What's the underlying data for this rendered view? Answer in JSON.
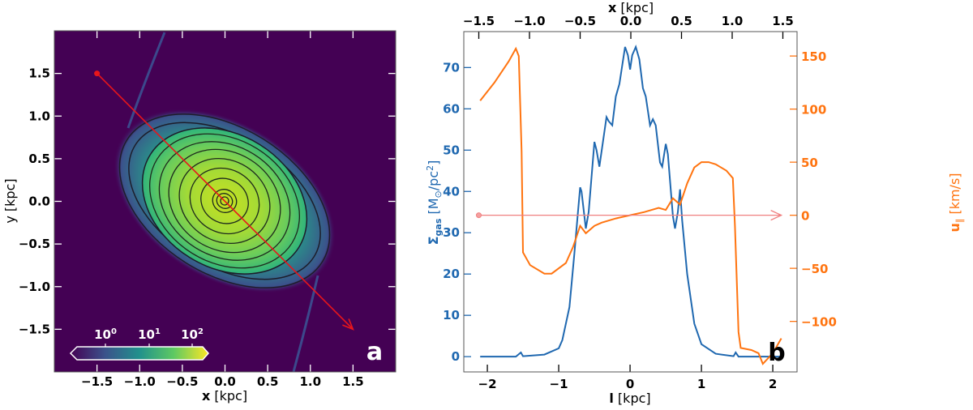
{
  "chart_data": [
    {
      "type": "heatmap",
      "panel_label": "a",
      "xlabel": "x [kpc]",
      "ylabel": "y [kpc]",
      "xlim": [
        -2.0,
        2.0
      ],
      "ylim": [
        -2.0,
        2.0
      ],
      "xticks": [
        -1.5,
        -1.0,
        -0.5,
        0.0,
        0.5,
        1.0,
        1.5
      ],
      "yticks": [
        -1.5,
        -1.0,
        -0.5,
        0.0,
        0.5,
        1.0,
        1.5
      ],
      "xtick_labels": [
        "−1.5",
        "−1.0",
        "−0.5",
        "0.0",
        "0.5",
        "1.0",
        "1.5"
      ],
      "ytick_labels": [
        "−1.5",
        "−1.0",
        "−0.5",
        "0.0",
        "0.5",
        "1.0",
        "1.5"
      ],
      "colormap": "viridis",
      "colorbar": {
        "scale": "log",
        "tick_labels": [
          {
            "base": "10",
            "exp": "0"
          },
          {
            "base": "10",
            "exp": "1"
          },
          {
            "base": "10",
            "exp": "2"
          }
        ],
        "placement": "bottom-left"
      },
      "arrow": {
        "start": [
          -1.5,
          1.5
        ],
        "end": [
          1.5,
          -1.5
        ],
        "color": "#e8161b"
      },
      "colors": {
        "background": "#440154",
        "line": "#e8161b"
      }
    },
    {
      "type": "line",
      "panel_label": "b",
      "xlabel": "l [kpc]",
      "top_xlabel": "x [kpc]",
      "ylabel_left": {
        "symbol": "Σ",
        "sub": "gas",
        "unit": " [M",
        "sun": "⊙",
        "unit2": "/pc",
        "sup": "2",
        "close": "]"
      },
      "ylabel_right": {
        "symbol": "u",
        "sub": "∥",
        "unit": " [km/s]"
      },
      "xlim": [
        -2.33,
        2.34
      ],
      "ylim_left": [
        -3.7,
        78.7
      ],
      "ylim_right": [
        -147.6,
        173
      ],
      "xticks": [
        -2,
        -1,
        0,
        1,
        2
      ],
      "xtick_labels": [
        "−2",
        "−1",
        "0",
        "1",
        "2"
      ],
      "top_xticks": [
        -1.5,
        -1.0,
        -0.5,
        0.0,
        0.5,
        1.0,
        1.5
      ],
      "top_xtick_labels": [
        "−1.5",
        "−1.0",
        "−0.5",
        "0.0",
        "0.5",
        "1.0",
        "1.5"
      ],
      "yticks_left": [
        0,
        10,
        20,
        30,
        40,
        50,
        60,
        70
      ],
      "yticks_right": [
        -100,
        -50,
        0,
        50,
        100,
        150
      ],
      "ytick_labels_right": [
        "−100",
        "−50",
        "0",
        "50",
        "100",
        "150"
      ],
      "colors": {
        "sigma": "#1f68b0",
        "u": "#ff7410",
        "zero_arrow": "#f08080"
      },
      "series": [
        {
          "axis": "left",
          "color": "#1f68b0",
          "x": [
            -2.1,
            -1.6,
            -1.53,
            -1.5,
            -1.2,
            -1.0,
            -0.95,
            -0.85,
            -0.78,
            -0.73,
            -0.7,
            -0.68,
            -0.62,
            -0.58,
            -0.5,
            -0.47,
            -0.43,
            -0.38,
            -0.33,
            -0.3,
            -0.25,
            -0.2,
            -0.15,
            -0.07,
            -0.03,
            0,
            0.03,
            0.08,
            0.13,
            0.18,
            0.22,
            0.28,
            0.32,
            0.36,
            0.42,
            0.45,
            0.5,
            0.53,
            0.6,
            0.63,
            0.67,
            0.7,
            0.73,
            0.8,
            0.9,
            1.0,
            1.2,
            1.45,
            1.48,
            1.52,
            2.1
          ],
          "y": [
            0,
            0,
            1,
            0.1,
            0.5,
            2,
            4,
            12,
            25,
            35,
            41,
            40,
            31,
            35,
            52,
            50,
            46,
            52,
            58,
            57,
            56,
            63,
            66,
            75,
            73,
            69.5,
            73,
            75,
            72,
            65,
            63,
            56,
            57.5,
            56,
            47,
            46,
            51.5,
            49,
            34,
            31,
            35,
            40.5,
            33,
            20,
            8,
            3,
            0.7,
            0.1,
            1,
            0,
            0
          ]
        },
        {
          "axis": "right",
          "color": "#ff7410",
          "x": [
            -2.1,
            -1.9,
            -1.7,
            -1.6,
            -1.56,
            -1.52,
            -1.5,
            -1.4,
            -1.2,
            -1.1,
            -0.9,
            -0.8,
            -0.7,
            -0.62,
            -0.5,
            -0.4,
            -0.2,
            0,
            0.2,
            0.4,
            0.5,
            0.6,
            0.7,
            0.8,
            0.9,
            1.0,
            1.1,
            1.2,
            1.35,
            1.44,
            1.47,
            1.52,
            1.55,
            1.7,
            1.8,
            1.86,
            2.0,
            2.12
          ],
          "y": [
            108,
            125,
            145,
            157,
            150,
            60,
            -35,
            -47,
            -55,
            -55,
            -45,
            -30,
            -10,
            -17,
            -10,
            -7,
            -3,
            0,
            3,
            7,
            5,
            16,
            10,
            30,
            45,
            50,
            50,
            48,
            42,
            35,
            -10,
            -110,
            -125,
            -127,
            -130,
            -140,
            -130,
            -116
          ]
        }
      ],
      "arrow": {
        "start_l": -2.12,
        "end_l": 2.12,
        "u": 0
      }
    }
  ]
}
